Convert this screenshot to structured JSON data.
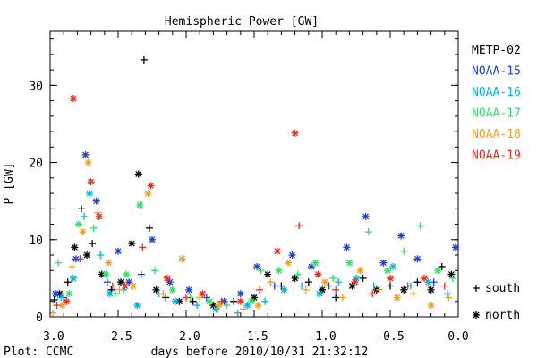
{
  "chart_data": {
    "type": "scatter",
    "title": "Hemispheric Power [GW]",
    "xlabel": "days before 2010/10/31 21:32:12",
    "ylabel": "P [GW]",
    "footer": "Plot: CCMC",
    "xlim": [
      -3.0,
      0.0
    ],
    "ylim": [
      0,
      37
    ],
    "x_ticks": [
      -3.0,
      -2.5,
      -2.0,
      -1.5,
      -1.0,
      -0.5,
      0.0
    ],
    "x_tick_labels": [
      "-3.0",
      "-2.5",
      "-2.0",
      "-1.5",
      "-1.0",
      "-0.5",
      "0.0"
    ],
    "y_ticks": [
      0,
      10,
      20,
      30
    ],
    "y_tick_labels": [
      "0",
      "10",
      "20",
      "30"
    ],
    "legend_position": "right, outside plot",
    "marker_legend": [
      {
        "symbol": "+",
        "label": "south"
      },
      {
        "symbol": "*",
        "label": "north"
      }
    ],
    "series": [
      {
        "name": "METP-02",
        "color": "#000000",
        "points": [
          {
            "x": -2.97,
            "y": 2.2,
            "m": "+"
          },
          {
            "x": -2.93,
            "y": 3.0,
            "m": "*"
          },
          {
            "x": -2.87,
            "y": 4.5,
            "m": "+"
          },
          {
            "x": -2.82,
            "y": 9.0,
            "m": "*"
          },
          {
            "x": -2.77,
            "y": 14.0,
            "m": "+"
          },
          {
            "x": -2.73,
            "y": 8.0,
            "m": "*"
          },
          {
            "x": -2.69,
            "y": 9.5,
            "m": "+"
          },
          {
            "x": -2.62,
            "y": 5.5,
            "m": "*"
          },
          {
            "x": -2.55,
            "y": 3.5,
            "m": "+"
          },
          {
            "x": -2.48,
            "y": 4.5,
            "m": "*"
          },
          {
            "x": -2.4,
            "y": 9.5,
            "m": "*"
          },
          {
            "x": -2.35,
            "y": 18.5,
            "m": "*"
          },
          {
            "x": -2.31,
            "y": 33.3,
            "m": "+"
          },
          {
            "x": -2.27,
            "y": 11.5,
            "m": "+"
          },
          {
            "x": -2.22,
            "y": 3.5,
            "m": "*"
          },
          {
            "x": -2.15,
            "y": 2.5,
            "m": "+"
          },
          {
            "x": -2.05,
            "y": 2.0,
            "m": "*"
          },
          {
            "x": -1.95,
            "y": 2.0,
            "m": "+"
          },
          {
            "x": -1.8,
            "y": 1.5,
            "m": "*"
          },
          {
            "x": -1.65,
            "y": 2.0,
            "m": "+"
          },
          {
            "x": -1.5,
            "y": 2.5,
            "m": "*"
          },
          {
            "x": -1.4,
            "y": 5.5,
            "m": "*"
          },
          {
            "x": -1.3,
            "y": 4.0,
            "m": "+"
          },
          {
            "x": -1.2,
            "y": 5.0,
            "m": "*"
          },
          {
            "x": -1.1,
            "y": 4.5,
            "m": "+"
          },
          {
            "x": -1.0,
            "y": 3.5,
            "m": "*"
          },
          {
            "x": -0.9,
            "y": 2.5,
            "m": "+"
          },
          {
            "x": -0.78,
            "y": 4.0,
            "m": "*"
          },
          {
            "x": -0.7,
            "y": 5.0,
            "m": "+"
          },
          {
            "x": -0.6,
            "y": 3.5,
            "m": "*"
          },
          {
            "x": -0.5,
            "y": 4.0,
            "m": "+"
          },
          {
            "x": -0.4,
            "y": 3.5,
            "m": "*"
          },
          {
            "x": -0.3,
            "y": 4.5,
            "m": "+"
          },
          {
            "x": -0.2,
            "y": 3.5,
            "m": "*"
          },
          {
            "x": -0.12,
            "y": 6.5,
            "m": "+"
          },
          {
            "x": -0.05,
            "y": 5.5,
            "m": "*"
          }
        ]
      },
      {
        "name": "NOAA-15",
        "color": "#1f3fcf",
        "points": [
          {
            "x": -2.96,
            "y": 3.0,
            "m": "*"
          },
          {
            "x": -2.9,
            "y": 2.5,
            "m": "+"
          },
          {
            "x": -2.81,
            "y": 7.5,
            "m": "*"
          },
          {
            "x": -2.74,
            "y": 21.0,
            "m": "*"
          },
          {
            "x": -2.66,
            "y": 15.0,
            "m": "*"
          },
          {
            "x": -2.58,
            "y": 4.5,
            "m": "+"
          },
          {
            "x": -2.5,
            "y": 8.5,
            "m": "*"
          },
          {
            "x": -2.42,
            "y": 4.5,
            "m": "*"
          },
          {
            "x": -2.33,
            "y": 5.5,
            "m": "+"
          },
          {
            "x": -2.25,
            "y": 10.0,
            "m": "*"
          },
          {
            "x": -2.12,
            "y": 4.5,
            "m": "*"
          },
          {
            "x": -1.98,
            "y": 3.5,
            "m": "*"
          },
          {
            "x": -1.85,
            "y": 2.5,
            "m": "+"
          },
          {
            "x": -1.72,
            "y": 2.0,
            "m": "*"
          },
          {
            "x": -1.6,
            "y": 3.0,
            "m": "*"
          },
          {
            "x": -1.48,
            "y": 6.5,
            "m": "*"
          },
          {
            "x": -1.35,
            "y": 4.0,
            "m": "+"
          },
          {
            "x": -1.22,
            "y": 8.0,
            "m": "*"
          },
          {
            "x": -1.08,
            "y": 6.5,
            "m": "*"
          },
          {
            "x": -0.95,
            "y": 4.0,
            "m": "+"
          },
          {
            "x": -0.82,
            "y": 9.0,
            "m": "*"
          },
          {
            "x": -0.68,
            "y": 13.0,
            "m": "*"
          },
          {
            "x": -0.55,
            "y": 7.0,
            "m": "*"
          },
          {
            "x": -0.42,
            "y": 10.5,
            "m": "*"
          },
          {
            "x": -0.3,
            "y": 7.5,
            "m": "*"
          },
          {
            "x": -0.18,
            "y": 4.5,
            "m": "+"
          },
          {
            "x": -0.02,
            "y": 9.0,
            "m": "*"
          }
        ]
      },
      {
        "name": "NOAA-16",
        "color": "#00b4e6",
        "points": [
          {
            "x": -2.92,
            "y": 2.5,
            "m": "+"
          },
          {
            "x": -2.83,
            "y": 5.0,
            "m": "*"
          },
          {
            "x": -2.75,
            "y": 13.0,
            "m": "+"
          },
          {
            "x": -2.71,
            "y": 16.0,
            "m": "*"
          },
          {
            "x": -2.63,
            "y": 8.0,
            "m": "+"
          },
          {
            "x": -2.56,
            "y": 3.0,
            "m": "*"
          },
          {
            "x": -2.46,
            "y": 3.5,
            "m": "+"
          },
          {
            "x": -2.36,
            "y": 1.5,
            "m": "*"
          },
          {
            "x": -2.2,
            "y": 3.0,
            "m": "+"
          },
          {
            "x": -2.08,
            "y": 2.0,
            "m": "*"
          },
          {
            "x": -1.92,
            "y": 1.5,
            "m": "+"
          },
          {
            "x": -1.78,
            "y": 1.0,
            "m": "*"
          },
          {
            "x": -1.62,
            "y": 0.5,
            "m": "+"
          },
          {
            "x": -1.55,
            "y": 1.5,
            "m": "*"
          },
          {
            "x": -1.42,
            "y": 2.0,
            "m": "+"
          },
          {
            "x": -1.28,
            "y": 3.5,
            "m": "*"
          },
          {
            "x": -1.15,
            "y": 4.0,
            "m": "+"
          },
          {
            "x": -1.02,
            "y": 3.0,
            "m": "*"
          },
          {
            "x": -0.88,
            "y": 4.5,
            "m": "+"
          },
          {
            "x": -0.75,
            "y": 5.0,
            "m": "*"
          },
          {
            "x": -0.62,
            "y": 4.0,
            "m": "+"
          },
          {
            "x": -0.48,
            "y": 6.5,
            "m": "*"
          },
          {
            "x": -0.35,
            "y": 4.0,
            "m": "+"
          },
          {
            "x": -0.22,
            "y": 4.5,
            "m": "*"
          },
          {
            "x": -0.08,
            "y": 3.0,
            "m": "+"
          }
        ]
      },
      {
        "name": "NOAA-17",
        "color": "#33e066",
        "points": [
          {
            "x": -2.94,
            "y": 7.0,
            "m": "+"
          },
          {
            "x": -2.86,
            "y": 3.0,
            "m": "*"
          },
          {
            "x": -2.79,
            "y": 12.0,
            "m": "*"
          },
          {
            "x": -2.68,
            "y": 11.5,
            "m": "+"
          },
          {
            "x": -2.59,
            "y": 5.5,
            "m": "*"
          },
          {
            "x": -2.52,
            "y": 3.0,
            "m": "+"
          },
          {
            "x": -2.44,
            "y": 5.5,
            "m": "*"
          },
          {
            "x": -2.34,
            "y": 14.5,
            "m": "*"
          },
          {
            "x": -2.23,
            "y": 6.0,
            "m": "+"
          },
          {
            "x": -2.1,
            "y": 3.5,
            "m": "*"
          },
          {
            "x": -1.97,
            "y": 2.5,
            "m": "+"
          },
          {
            "x": -1.83,
            "y": 2.0,
            "m": "*"
          },
          {
            "x": -1.7,
            "y": 1.5,
            "m": "+"
          },
          {
            "x": -1.52,
            "y": 2.0,
            "m": "*"
          },
          {
            "x": -1.45,
            "y": 6.0,
            "m": "+"
          },
          {
            "x": -1.32,
            "y": 6.0,
            "m": "*"
          },
          {
            "x": -1.18,
            "y": 5.5,
            "m": "+"
          },
          {
            "x": -1.05,
            "y": 7.0,
            "m": "*"
          },
          {
            "x": -0.92,
            "y": 5.0,
            "m": "+"
          },
          {
            "x": -0.8,
            "y": 7.0,
            "m": "*"
          },
          {
            "x": -0.66,
            "y": 11.0,
            "m": "+"
          },
          {
            "x": -0.52,
            "y": 6.0,
            "m": "*"
          },
          {
            "x": -0.4,
            "y": 8.5,
            "m": "+"
          },
          {
            "x": -0.28,
            "y": 11.8,
            "m": "+"
          },
          {
            "x": -0.15,
            "y": 6.0,
            "m": "*"
          },
          {
            "x": -0.04,
            "y": 5.0,
            "m": "+"
          }
        ]
      },
      {
        "name": "NOAA-18",
        "color": "#f0a020",
        "points": [
          {
            "x": -2.98,
            "y": 0.5,
            "m": "+"
          },
          {
            "x": -2.91,
            "y": 1.5,
            "m": "*"
          },
          {
            "x": -2.84,
            "y": 6.5,
            "m": "+"
          },
          {
            "x": -2.76,
            "y": 11.0,
            "m": "*"
          },
          {
            "x": -2.72,
            "y": 20.0,
            "m": "*"
          },
          {
            "x": -2.65,
            "y": 13.5,
            "m": "+"
          },
          {
            "x": -2.57,
            "y": 7.0,
            "m": "*"
          },
          {
            "x": -2.49,
            "y": 3.5,
            "m": "+"
          },
          {
            "x": -2.39,
            "y": 4.0,
            "m": "*"
          },
          {
            "x": -2.28,
            "y": 16.0,
            "m": "*"
          },
          {
            "x": -2.17,
            "y": 3.0,
            "m": "+"
          },
          {
            "x": -2.03,
            "y": 7.5,
            "m": "*"
          },
          {
            "x": -1.9,
            "y": 2.5,
            "m": "+"
          },
          {
            "x": -1.76,
            "y": 1.5,
            "m": "*"
          },
          {
            "x": -1.58,
            "y": 1.0,
            "m": "+"
          },
          {
            "x": -1.47,
            "y": 1.5,
            "m": "*"
          },
          {
            "x": -1.38,
            "y": 4.5,
            "m": "+"
          },
          {
            "x": -1.25,
            "y": 7.0,
            "m": "*"
          },
          {
            "x": -1.12,
            "y": 3.5,
            "m": "+"
          },
          {
            "x": -0.98,
            "y": 4.5,
            "m": "*"
          },
          {
            "x": -0.85,
            "y": 2.5,
            "m": "+"
          },
          {
            "x": -0.72,
            "y": 6.0,
            "m": "*"
          },
          {
            "x": -0.58,
            "y": 3.5,
            "m": "+"
          },
          {
            "x": -0.45,
            "y": 2.5,
            "m": "*"
          },
          {
            "x": -0.33,
            "y": 3.0,
            "m": "+"
          },
          {
            "x": -0.2,
            "y": 1.5,
            "m": "*"
          },
          {
            "x": -0.07,
            "y": 2.5,
            "m": "+"
          }
        ]
      },
      {
        "name": "NOAA-19",
        "color": "#e0301e",
        "points": [
          {
            "x": -2.95,
            "y": 1.5,
            "m": "+"
          },
          {
            "x": -2.88,
            "y": 2.0,
            "m": "*"
          },
          {
            "x": -2.83,
            "y": 28.3,
            "m": "*"
          },
          {
            "x": -2.78,
            "y": 7.5,
            "m": "+"
          },
          {
            "x": -2.7,
            "y": 17.5,
            "m": "*"
          },
          {
            "x": -2.64,
            "y": 13.0,
            "m": "*"
          },
          {
            "x": -2.54,
            "y": 4.0,
            "m": "+"
          },
          {
            "x": -2.45,
            "y": 4.0,
            "m": "*"
          },
          {
            "x": -2.32,
            "y": 9.0,
            "m": "+"
          },
          {
            "x": -2.26,
            "y": 17.0,
            "m": "*"
          },
          {
            "x": -2.14,
            "y": 5.0,
            "m": "*"
          },
          {
            "x": -2.0,
            "y": 2.5,
            "m": "+"
          },
          {
            "x": -1.88,
            "y": 3.0,
            "m": "*"
          },
          {
            "x": -1.74,
            "y": 2.0,
            "m": "+"
          },
          {
            "x": -1.6,
            "y": 2.0,
            "m": "*"
          },
          {
            "x": -1.46,
            "y": 3.5,
            "m": "+"
          },
          {
            "x": -1.33,
            "y": 8.5,
            "m": "*"
          },
          {
            "x": -1.2,
            "y": 23.8,
            "m": "*"
          },
          {
            "x": -1.17,
            "y": 11.8,
            "m": "+"
          },
          {
            "x": -1.03,
            "y": 5.5,
            "m": "*"
          },
          {
            "x": -0.9,
            "y": 3.5,
            "m": "+"
          },
          {
            "x": -0.76,
            "y": 4.5,
            "m": "*"
          },
          {
            "x": -0.63,
            "y": 3.0,
            "m": "+"
          },
          {
            "x": -0.5,
            "y": 5.0,
            "m": "*"
          },
          {
            "x": -0.37,
            "y": 4.0,
            "m": "+"
          },
          {
            "x": -0.25,
            "y": 5.0,
            "m": "*"
          },
          {
            "x": -0.1,
            "y": 4.0,
            "m": "+"
          }
        ]
      }
    ]
  }
}
